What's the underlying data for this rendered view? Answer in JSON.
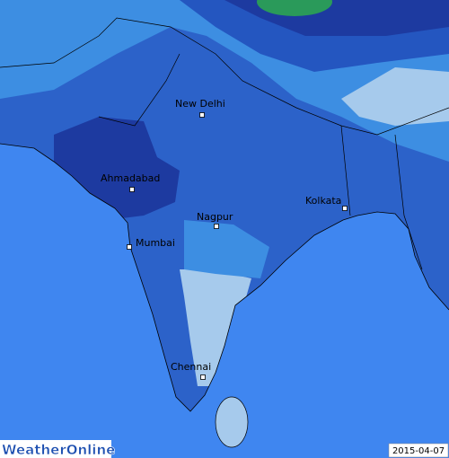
{
  "map": {
    "cities": [
      {
        "label": "New Delhi"
      },
      {
        "label": "Ahmadabad"
      },
      {
        "label": "Kolkata"
      },
      {
        "label": "Nagpur"
      },
      {
        "label": "Mumbai"
      },
      {
        "label": "Chennai"
      }
    ],
    "logo": "WeatherOnline",
    "date": "2015-04-07"
  }
}
